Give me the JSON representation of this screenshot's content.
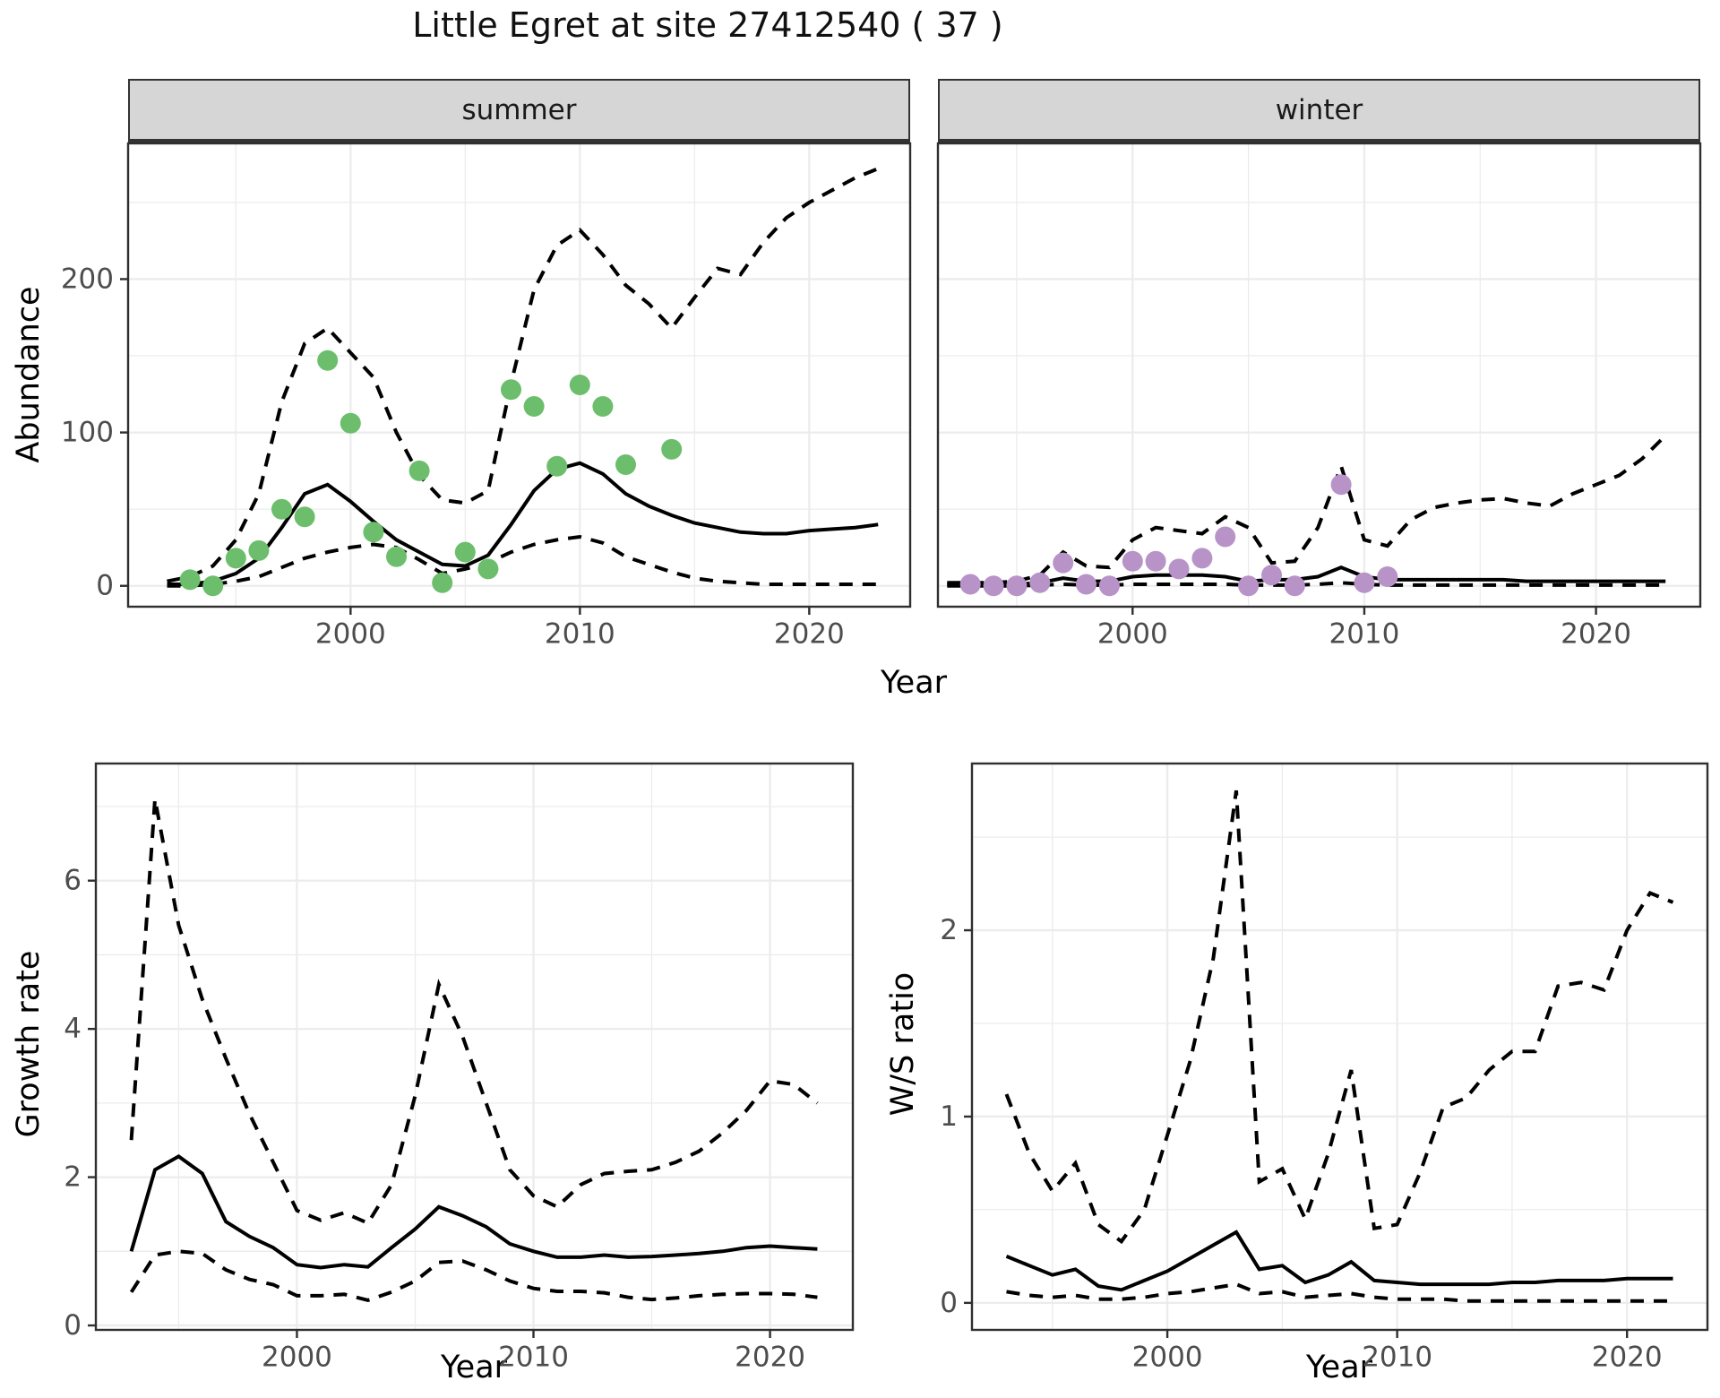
{
  "title": "Little Egret at site 27412540 ( 37 )",
  "axes": {
    "x_label": "Year",
    "abundance_label": "Abundance",
    "growth_label": "Growth rate",
    "ws_label": "W/S ratio"
  },
  "facets": {
    "summer": "summer",
    "winter": "winter"
  },
  "colors": {
    "summer_points": "#6CBE6C",
    "winter_points": "#B893C8",
    "line": "#000000",
    "grid": "#ECECEC",
    "strip_bg": "#D6D6D6",
    "panel_border": "#2F2F2F",
    "tick_text": "#4D4D4D"
  },
  "chart_data": [
    {
      "id": "abundance-summer",
      "type": "line",
      "facet": "summer",
      "ylabel": "Abundance",
      "xlabel": "Year",
      "x": [
        1992,
        1993,
        1994,
        1995,
        1996,
        1997,
        1998,
        1999,
        2000,
        2001,
        2002,
        2003,
        2004,
        2005,
        2006,
        2007,
        2008,
        2009,
        2010,
        2011,
        2012,
        2013,
        2014,
        2015,
        2016,
        2017,
        2018,
        2019,
        2020,
        2021,
        2022,
        2023
      ],
      "series": [
        {
          "name": "median",
          "style": "solid",
          "values": [
            1,
            1,
            3,
            8,
            18,
            38,
            60,
            66,
            55,
            42,
            30,
            22,
            14,
            13,
            20,
            40,
            62,
            76,
            80,
            73,
            60,
            52,
            46,
            41,
            38,
            35,
            34,
            34,
            36,
            37,
            38,
            40
          ]
        },
        {
          "name": "upper_ci",
          "style": "dashed",
          "values": [
            3,
            6,
            13,
            30,
            60,
            120,
            158,
            168,
            152,
            136,
            100,
            72,
            56,
            54,
            62,
            132,
            193,
            222,
            232,
            216,
            196,
            184,
            168,
            188,
            207,
            203,
            224,
            240,
            250,
            258,
            266,
            272
          ]
        },
        {
          "name": "lower_ci",
          "style": "dashed",
          "values": [
            0,
            0,
            1,
            3,
            6,
            12,
            18,
            22,
            25,
            27,
            25,
            17,
            8,
            11,
            15,
            22,
            27,
            30,
            32,
            28,
            19,
            14,
            9,
            5,
            3,
            2,
            1,
            1,
            1,
            1,
            1,
            1
          ]
        }
      ],
      "points": {
        "color_key": "summer_points",
        "x": [
          1993,
          1994,
          1995,
          1996,
          1997,
          1998,
          1999,
          2000,
          2001,
          2002,
          2003,
          2004,
          2005,
          2006,
          2007,
          2008,
          2009,
          2010,
          2011,
          2012,
          2014
        ],
        "y": [
          4,
          0,
          18,
          23,
          50,
          45,
          147,
          106,
          35,
          19,
          75,
          2,
          22,
          11,
          128,
          117,
          78,
          131,
          117,
          79,
          89
        ]
      },
      "xlim": [
        1990.3,
        2024.4
      ],
      "ylim": [
        -13.6,
        288.5
      ],
      "xticks": {
        "major": [
          2000,
          2010,
          2020
        ],
        "minor": [
          1995,
          2005,
          2015
        ],
        "labels": [
          "2000",
          "2010",
          "2020"
        ]
      },
      "yticks": {
        "major": [
          0,
          100,
          200
        ],
        "minor": [
          50,
          150,
          250
        ],
        "labels": [
          "0",
          "100",
          "200"
        ],
        "show_labels": true
      }
    },
    {
      "id": "abundance-winter",
      "type": "line",
      "facet": "winter",
      "ylabel": "Abundance",
      "xlabel": "Year",
      "x": [
        1992,
        1993,
        1994,
        1995,
        1996,
        1997,
        1998,
        1999,
        2000,
        2001,
        2002,
        2003,
        2004,
        2005,
        2006,
        2007,
        2008,
        2009,
        2010,
        2011,
        2012,
        2013,
        2014,
        2015,
        2016,
        2017,
        2018,
        2019,
        2020,
        2021,
        2022,
        2023
      ],
      "series": [
        {
          "name": "median",
          "style": "solid",
          "values": [
            1,
            1,
            1,
            1,
            2,
            5,
            3,
            3,
            6,
            7,
            7,
            7,
            6,
            3,
            4,
            4,
            6,
            12,
            6,
            4,
            4,
            4,
            4,
            4,
            4,
            3,
            3,
            3,
            3,
            3,
            3,
            3
          ]
        },
        {
          "name": "upper_ci",
          "style": "dashed",
          "values": [
            2,
            2,
            2,
            3,
            7,
            22,
            13,
            12,
            30,
            38,
            36,
            34,
            45,
            38,
            15,
            16,
            38,
            78,
            30,
            26,
            43,
            51,
            54,
            56,
            57,
            54,
            52,
            60,
            66,
            72,
            83,
            98
          ]
        },
        {
          "name": "lower_ci",
          "style": "dashed",
          "values": [
            0,
            0,
            0,
            0,
            0.5,
            1,
            0.5,
            0.5,
            1,
            1,
            1,
            1,
            1,
            0.5,
            0.5,
            0.5,
            1,
            2,
            1,
            0.5,
            0.5,
            0.5,
            0.5,
            0.5,
            0.5,
            0.5,
            0.5,
            0.5,
            0.5,
            0.5,
            0.5,
            0.5
          ]
        }
      ],
      "points": {
        "color_key": "winter_points",
        "x": [
          1993,
          1994,
          1995,
          1996,
          1997,
          1998,
          1999,
          2000,
          2001,
          2002,
          2003,
          2004,
          2005,
          2006,
          2007,
          2009,
          2010,
          2011
        ],
        "y": [
          1,
          0,
          0,
          2,
          15,
          1,
          0,
          16,
          16,
          11,
          18,
          32,
          0,
          7,
          0,
          66,
          2,
          6
        ]
      },
      "xlim": [
        1991.6,
        2024.5
      ],
      "ylim": [
        -13.6,
        288.5
      ],
      "xticks": {
        "major": [
          2000,
          2010,
          2020
        ],
        "minor": [
          1995,
          2005,
          2015
        ],
        "labels": [
          "2000",
          "2010",
          "2020"
        ]
      },
      "yticks": {
        "major": [
          0,
          100,
          200
        ],
        "minor": [
          50,
          150,
          250
        ],
        "labels": [
          "0",
          "100",
          "200"
        ],
        "show_labels": false
      }
    },
    {
      "id": "growth-rate",
      "type": "line",
      "facet": null,
      "ylabel": "Growth rate",
      "xlabel": "Year",
      "x": [
        1993,
        1994,
        1995,
        1996,
        1997,
        1998,
        1999,
        2000,
        2001,
        2002,
        2003,
        2004,
        2005,
        2006,
        2007,
        2008,
        2009,
        2010,
        2011,
        2012,
        2013,
        2014,
        2015,
        2016,
        2017,
        2018,
        2019,
        2020,
        2021,
        2022
      ],
      "series": [
        {
          "name": "median",
          "style": "solid",
          "values": [
            1.0,
            2.1,
            2.28,
            2.05,
            1.4,
            1.2,
            1.05,
            0.82,
            0.78,
            0.82,
            0.79,
            1.05,
            1.3,
            1.6,
            1.48,
            1.33,
            1.1,
            1.0,
            0.92,
            0.92,
            0.95,
            0.92,
            0.93,
            0.95,
            0.97,
            1.0,
            1.05,
            1.07,
            1.05,
            1.03
          ]
        },
        {
          "name": "upper_ci",
          "style": "dashed",
          "values": [
            2.5,
            7.1,
            5.4,
            4.4,
            3.6,
            2.85,
            2.2,
            1.55,
            1.42,
            1.52,
            1.38,
            1.9,
            3.1,
            4.6,
            3.9,
            3.0,
            2.1,
            1.75,
            1.6,
            1.9,
            2.05,
            2.08,
            2.1,
            2.2,
            2.35,
            2.6,
            2.9,
            3.3,
            3.25,
            3.0
          ]
        },
        {
          "name": "lower_ci",
          "style": "dashed",
          "values": [
            0.45,
            0.95,
            1.0,
            0.97,
            0.75,
            0.62,
            0.55,
            0.4,
            0.4,
            0.42,
            0.34,
            0.45,
            0.6,
            0.85,
            0.87,
            0.75,
            0.6,
            0.5,
            0.46,
            0.46,
            0.44,
            0.38,
            0.35,
            0.37,
            0.4,
            0.42,
            0.43,
            0.43,
            0.42,
            0.38
          ]
        }
      ],
      "points": null,
      "xlim": [
        1991.5,
        2023.5
      ],
      "ylim": [
        -0.06,
        7.58
      ],
      "xticks": {
        "major": [
          2000,
          2010,
          2020
        ],
        "minor": [
          1995,
          2005,
          2015
        ],
        "labels": [
          "2000",
          "2010",
          "2020"
        ]
      },
      "yticks": {
        "major": [
          0,
          2,
          4,
          6
        ],
        "minor": [
          1,
          3,
          5,
          7
        ],
        "labels": [
          "0",
          "2",
          "4",
          "6"
        ],
        "show_labels": true
      }
    },
    {
      "id": "ws-ratio",
      "type": "line",
      "facet": null,
      "ylabel": "W/S ratio",
      "xlabel": "Year",
      "x": [
        1993,
        1994,
        1995,
        1996,
        1997,
        1998,
        1999,
        2000,
        2001,
        2002,
        2003,
        2004,
        2005,
        2006,
        2007,
        2008,
        2009,
        2010,
        2011,
        2012,
        2013,
        2014,
        2015,
        2016,
        2017,
        2018,
        2019,
        2020,
        2021,
        2022
      ],
      "series": [
        {
          "name": "median",
          "style": "solid",
          "values": [
            0.25,
            0.2,
            0.15,
            0.18,
            0.09,
            0.07,
            0.12,
            0.17,
            0.24,
            0.31,
            0.38,
            0.18,
            0.2,
            0.11,
            0.15,
            0.22,
            0.12,
            0.11,
            0.1,
            0.1,
            0.1,
            0.1,
            0.11,
            0.11,
            0.12,
            0.12,
            0.12,
            0.13,
            0.13,
            0.13
          ]
        },
        {
          "name": "upper_ci",
          "style": "dashed",
          "values": [
            1.12,
            0.8,
            0.6,
            0.75,
            0.42,
            0.33,
            0.5,
            0.9,
            1.3,
            1.85,
            2.75,
            0.65,
            0.72,
            0.45,
            0.8,
            1.25,
            0.4,
            0.42,
            0.7,
            1.05,
            1.1,
            1.25,
            1.35,
            1.35,
            1.7,
            1.72,
            1.68,
            2.0,
            2.2,
            2.15
          ]
        },
        {
          "name": "lower_ci",
          "style": "dashed",
          "values": [
            0.06,
            0.04,
            0.03,
            0.04,
            0.02,
            0.02,
            0.03,
            0.05,
            0.06,
            0.08,
            0.1,
            0.05,
            0.06,
            0.03,
            0.04,
            0.05,
            0.03,
            0.02,
            0.02,
            0.02,
            0.01,
            0.01,
            0.01,
            0.01,
            0.01,
            0.01,
            0.01,
            0.01,
            0.01,
            0.01
          ]
        }
      ],
      "points": null,
      "xlim": [
        1991.5,
        2023.5
      ],
      "ylim": [
        -0.145,
        2.895
      ],
      "xticks": {
        "major": [
          2000,
          2010,
          2020
        ],
        "minor": [
          1995,
          2005,
          2015
        ],
        "labels": [
          "2000",
          "2010",
          "2020"
        ]
      },
      "yticks": {
        "major": [
          0,
          1,
          2
        ],
        "minor": [
          0.5,
          1.5,
          2.5
        ],
        "labels": [
          "0",
          "1",
          "2"
        ],
        "show_labels": true
      }
    }
  ]
}
